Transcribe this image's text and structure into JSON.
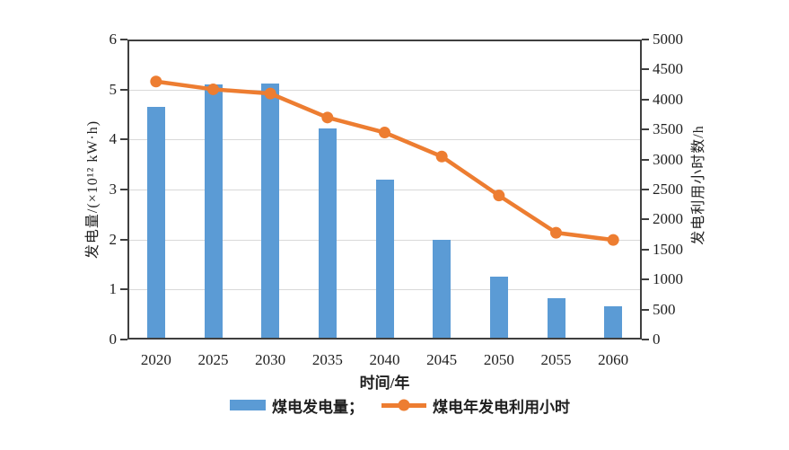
{
  "chart_data": {
    "type": "combo",
    "title": "",
    "categories": [
      "2020",
      "2025",
      "2030",
      "2035",
      "2040",
      "2045",
      "2050",
      "2055",
      "2060"
    ],
    "series": [
      {
        "name": "煤电发电量",
        "type": "bar",
        "axis": "left",
        "color": "#5b9bd5",
        "values": [
          4.65,
          5.1,
          5.12,
          4.23,
          3.19,
          2.0,
          1.26,
          0.83,
          0.66
        ]
      },
      {
        "name": "煤电年发电利用小时",
        "type": "line",
        "axis": "right",
        "color": "#ed7d31",
        "values": [
          4300,
          4170,
          4100,
          3700,
          3450,
          3050,
          2400,
          1780,
          1660
        ]
      }
    ],
    "left_axis": {
      "label": "发电量/(×10¹² kW·h)",
      "min": 0,
      "max": 6,
      "step": 1,
      "ticks": [
        "0",
        "1",
        "2",
        "3",
        "4",
        "5",
        "6"
      ]
    },
    "right_axis": {
      "label": "发电利用小时数/h",
      "min": 0,
      "max": 5000,
      "step": 500,
      "ticks": [
        "0",
        "500",
        "1000",
        "1500",
        "2000",
        "2500",
        "3000",
        "3500",
        "4000",
        "4500",
        "5000"
      ]
    },
    "x_axis": {
      "label": "时间/年"
    },
    "legend": [
      {
        "label": "煤电发电量；",
        "marker": "bar-swatch",
        "color": "#5b9bd5"
      },
      {
        "label": "煤电年发电利用小时",
        "marker": "line-dot",
        "color": "#ed7d31"
      }
    ],
    "layout": {
      "grid": true,
      "legend_position": "bottom-center",
      "frame": true
    },
    "colors": {
      "grid": "#d9d9d9",
      "frame": "#3f3f3f",
      "text": "#1f1f1f",
      "background": "#ffffff"
    }
  }
}
